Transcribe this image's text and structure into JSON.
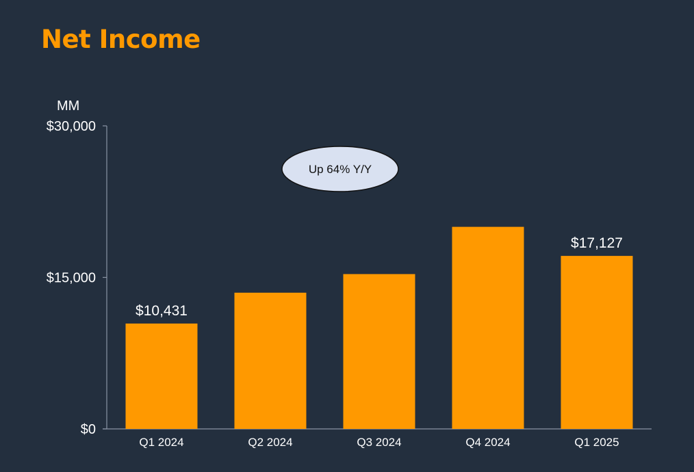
{
  "title": "Net Income",
  "colors": {
    "background": "#232f3e",
    "accent": "#ff9900",
    "bar": "#ff9900",
    "text": "#ffffff",
    "callout_fill": "#d9e1f1"
  },
  "chart_data": {
    "type": "bar",
    "title": "Net Income",
    "unit_label": "MM",
    "xlabel": "",
    "ylabel": "",
    "categories": [
      "Q1 2024",
      "Q2 2024",
      "Q3 2024",
      "Q4 2024",
      "Q1 2025"
    ],
    "values": [
      10431,
      13485,
      15328,
      20004,
      17127
    ],
    "data_labels": [
      "$10,431",
      "",
      "",
      "",
      "$17,127"
    ],
    "ylim": [
      0,
      30000
    ],
    "yticks": [
      0,
      15000,
      30000
    ],
    "ytick_labels": [
      "$0",
      "$15,000",
      "$30,000"
    ],
    "grid": false,
    "legend": "none",
    "annotation": "Up 64% Y/Y"
  }
}
